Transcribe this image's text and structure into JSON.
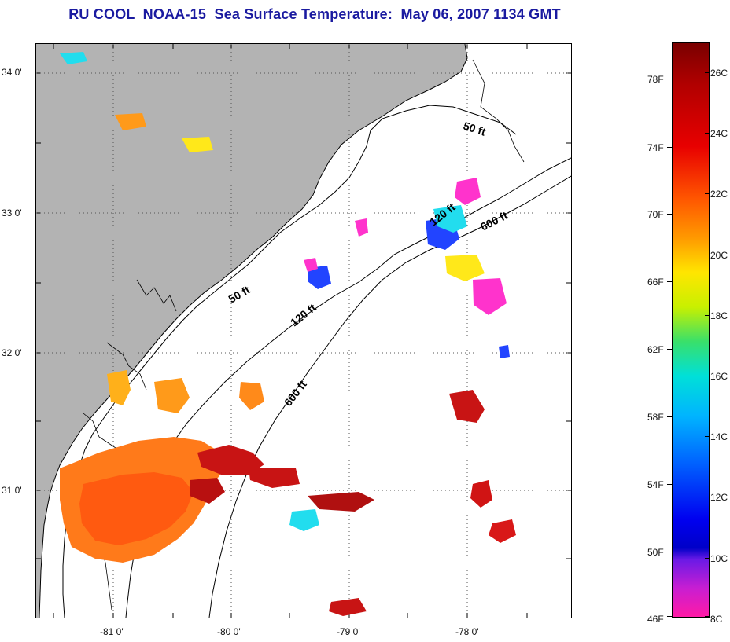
{
  "title": "RU COOL  NOAA-15  Sea Surface Temperature:  May 06, 2007 1134 GMT",
  "map": {
    "latitude_labels": [
      "34 0'",
      "33 0'",
      "32 0'",
      "31 0'"
    ],
    "longitude_labels": [
      "-81 0'",
      "-80 0'",
      "-79 0'",
      "-78 0'"
    ],
    "isobath_labels": {
      "fifty_north": "50 ft",
      "fifty_south": "50 ft",
      "one_twenty_north": "120 ft",
      "one_twenty_south": "120 ft",
      "six_hundred_north": "600 ft",
      "six_hundred_south": "600 ft"
    },
    "colors": {
      "land": "#b3b3b3",
      "ocean": "#ffffff",
      "warm_core": "#c81414",
      "orange": "#ff7a1a",
      "magenta": "#ff33cc",
      "blue": "#2244ff",
      "cyan": "#22ddee",
      "yellow": "#ffe81a"
    }
  },
  "colorbar": {
    "fahrenheit_labels": [
      "78F",
      "74F",
      "70F",
      "66F",
      "62F",
      "58F",
      "54F",
      "50F",
      "46F"
    ],
    "celsius_labels": [
      "26C",
      "24C",
      "22C",
      "20C",
      "18C",
      "16C",
      "14C",
      "12C",
      "10C",
      "8C"
    ]
  }
}
